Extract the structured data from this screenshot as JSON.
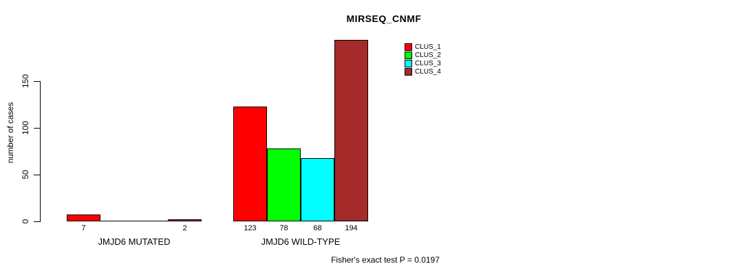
{
  "chart_data": {
    "type": "bar",
    "title": "MIRSEQ_CNMF",
    "ylabel": "number of cases",
    "xlabel": "",
    "yticks": [
      0,
      50,
      100,
      150
    ],
    "ylim": [
      0,
      150
    ],
    "grid": false,
    "legend_position": "top-right",
    "categories": [
      "JMJD6 MUTATED",
      "JMJD6 WILD-TYPE"
    ],
    "series": [
      {
        "name": "CLUS_1",
        "color": "#ff0000",
        "values": [
          7,
          123
        ]
      },
      {
        "name": "CLUS_2",
        "color": "#00ff00",
        "values": [
          0,
          78
        ]
      },
      {
        "name": "CLUS_3",
        "color": "#00ffff",
        "values": [
          0,
          68
        ]
      },
      {
        "name": "CLUS_4",
        "color": "#a52a2a",
        "values": [
          2,
          194
        ]
      }
    ],
    "bar_labels": [
      [
        "7",
        "",
        "",
        "2"
      ],
      [
        "123",
        "78",
        "68",
        "194"
      ]
    ],
    "annotation": "Fisher's exact test P = 0.0197"
  }
}
